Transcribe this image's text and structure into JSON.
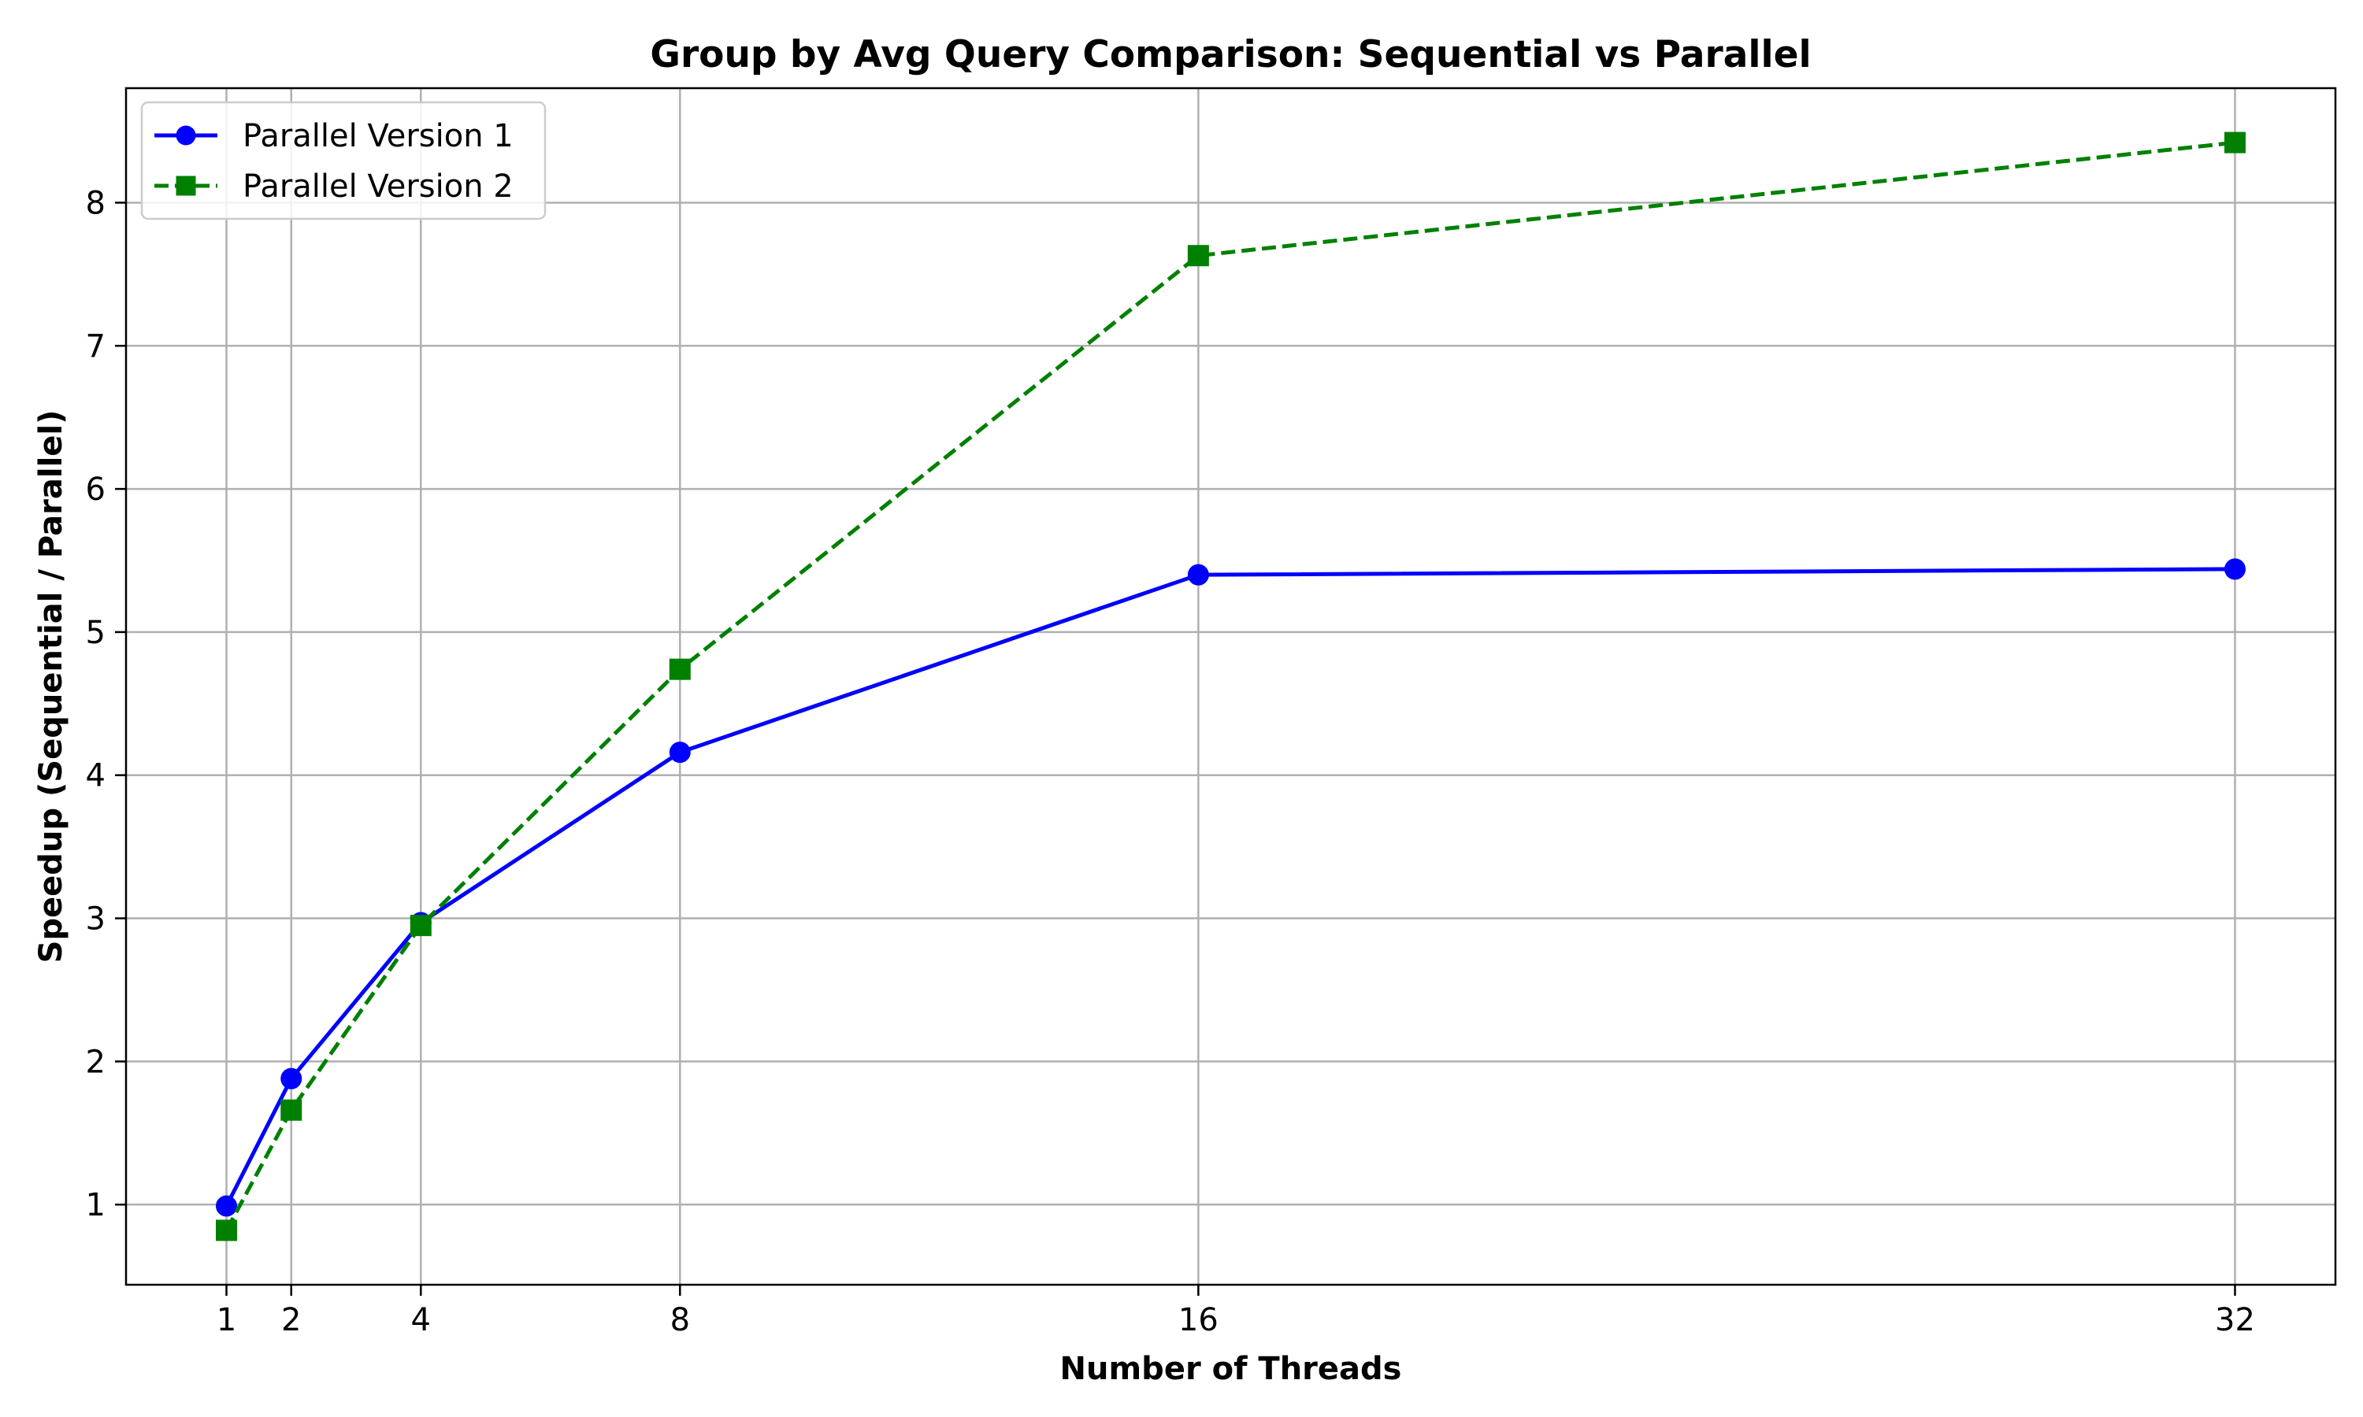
{
  "chart_data": {
    "type": "line",
    "title": "Group by Avg Query Comparison: Sequential vs Parallel",
    "xlabel": "Number of Threads",
    "ylabel": "Speedup (Sequential / Parallel)",
    "x": [
      1,
      2,
      4,
      8,
      16,
      32
    ],
    "x_ticks": [
      "1",
      "2",
      "4",
      "8",
      "16",
      "32"
    ],
    "y_ticks": [
      "1",
      "2",
      "3",
      "4",
      "5",
      "6",
      "7",
      "8"
    ],
    "xlim": [
      -0.55,
      33.55
    ],
    "ylim": [
      0.44,
      8.8
    ],
    "grid": true,
    "legend_position": "upper-left",
    "series": [
      {
        "name": "Parallel Version 1",
        "values": [
          0.99,
          1.88,
          2.97,
          4.16,
          5.4,
          5.44
        ],
        "color": "#0000ff",
        "line_style": "solid",
        "marker": "circle"
      },
      {
        "name": "Parallel Version 2",
        "values": [
          0.82,
          1.66,
          2.95,
          4.74,
          7.63,
          8.42
        ],
        "color": "#008000",
        "line_style": "dashed",
        "marker": "square"
      }
    ]
  }
}
